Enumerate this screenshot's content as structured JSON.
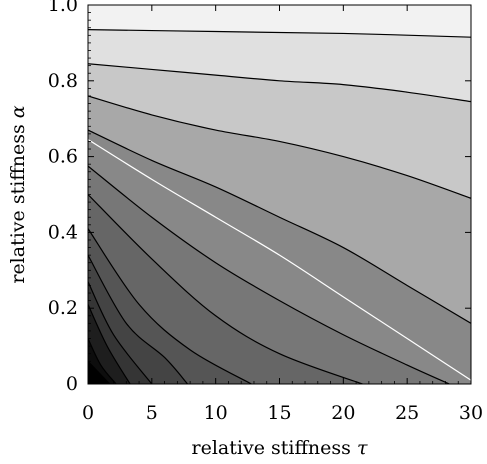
{
  "chart_data": {
    "type": "contour",
    "xlabel": "relative stiffness",
    "xlabel_symbol": "τ",
    "ylabel": "relative stiffness",
    "ylabel_symbol": "α",
    "xlim": [
      0,
      30
    ],
    "ylim": [
      0,
      1.0
    ],
    "x_ticks": [
      0,
      5,
      10,
      15,
      20,
      25,
      30
    ],
    "y_ticks": [
      0,
      0.2,
      0.4,
      0.6,
      0.8,
      1.0
    ],
    "x_tick_labels": [
      "0",
      "5",
      "10",
      "15",
      "20",
      "25",
      "30"
    ],
    "y_tick_labels": [
      "0",
      "0.2",
      "0.4",
      "0.6",
      "0.8",
      "1.0"
    ],
    "fill_top": "#f2f2f2",
    "contours": [
      {
        "color": "#000000",
        "fill_below": "#000000",
        "points": [
          [
            0,
            0.06
          ],
          [
            1.7,
            0
          ]
        ]
      },
      {
        "color": "#000000",
        "fill_below": "#0d0d0d",
        "points": [
          [
            0,
            0.12
          ],
          [
            1.0,
            0.05
          ],
          [
            2.2,
            0
          ]
        ]
      },
      {
        "color": "#000000",
        "fill_below": "#1e1e1e",
        "points": [
          [
            0,
            0.21
          ],
          [
            1.5,
            0.1
          ],
          [
            3.3,
            0
          ]
        ]
      },
      {
        "color": "#000000",
        "fill_below": "#353535",
        "points": [
          [
            0,
            0.27
          ],
          [
            2.0,
            0.13
          ],
          [
            5.0,
            0
          ]
        ]
      },
      {
        "color": "#000000",
        "fill_below": "#444444",
        "points": [
          [
            0,
            0.34
          ],
          [
            3.0,
            0.16
          ],
          [
            6.0,
            0.07
          ],
          [
            7.8,
            0
          ]
        ]
      },
      {
        "color": "#000000",
        "fill_below": "#555555",
        "points": [
          [
            0,
            0.41
          ],
          [
            4.0,
            0.21
          ],
          [
            8.0,
            0.09
          ],
          [
            12.8,
            0
          ]
        ]
      },
      {
        "color": "#000000",
        "fill_below": "#666666",
        "points": [
          [
            0,
            0.5
          ],
          [
            5.0,
            0.33
          ],
          [
            10.0,
            0.18
          ],
          [
            15.0,
            0.08
          ],
          [
            21.5,
            0
          ]
        ]
      },
      {
        "color": "#000000",
        "fill_below": "#777777",
        "points": [
          [
            0,
            0.575
          ],
          [
            5.0,
            0.44
          ],
          [
            10.0,
            0.32
          ],
          [
            15.0,
            0.22
          ],
          [
            20.0,
            0.13
          ],
          [
            25.0,
            0.05
          ],
          [
            28.3,
            0
          ]
        ]
      },
      {
        "color": "#ffffff",
        "fill_below": null,
        "points": [
          [
            0,
            0.645
          ],
          [
            5.0,
            0.54
          ],
          [
            10.0,
            0.44
          ],
          [
            15.0,
            0.34
          ],
          [
            20.0,
            0.23
          ],
          [
            25.0,
            0.12
          ],
          [
            30.0,
            0.01
          ]
        ]
      },
      {
        "color": "#000000",
        "fill_below": "#888888",
        "points": [
          [
            0,
            0.67
          ],
          [
            5.0,
            0.59
          ],
          [
            10.0,
            0.52
          ],
          [
            15.0,
            0.44
          ],
          [
            20.0,
            0.36
          ],
          [
            25.0,
            0.26
          ],
          [
            30.0,
            0.16
          ]
        ]
      },
      {
        "color": "#000000",
        "fill_below": "#a8a8a8",
        "points": [
          [
            0,
            0.76
          ],
          [
            5.0,
            0.71
          ],
          [
            10.0,
            0.67
          ],
          [
            15.0,
            0.64
          ],
          [
            20.0,
            0.6
          ],
          [
            25.0,
            0.55
          ],
          [
            30.0,
            0.49
          ]
        ]
      },
      {
        "color": "#000000",
        "fill_below": "#c8c8c8",
        "points": [
          [
            0,
            0.845
          ],
          [
            5.0,
            0.83
          ],
          [
            10.0,
            0.815
          ],
          [
            15.0,
            0.8
          ],
          [
            20.0,
            0.79
          ],
          [
            25.0,
            0.77
          ],
          [
            30.0,
            0.745
          ]
        ]
      },
      {
        "color": "#000000",
        "fill_below": "#e0e0e0",
        "points": [
          [
            0,
            0.935
          ],
          [
            10.0,
            0.93
          ],
          [
            20.0,
            0.925
          ],
          [
            30.0,
            0.915
          ]
        ]
      }
    ]
  }
}
